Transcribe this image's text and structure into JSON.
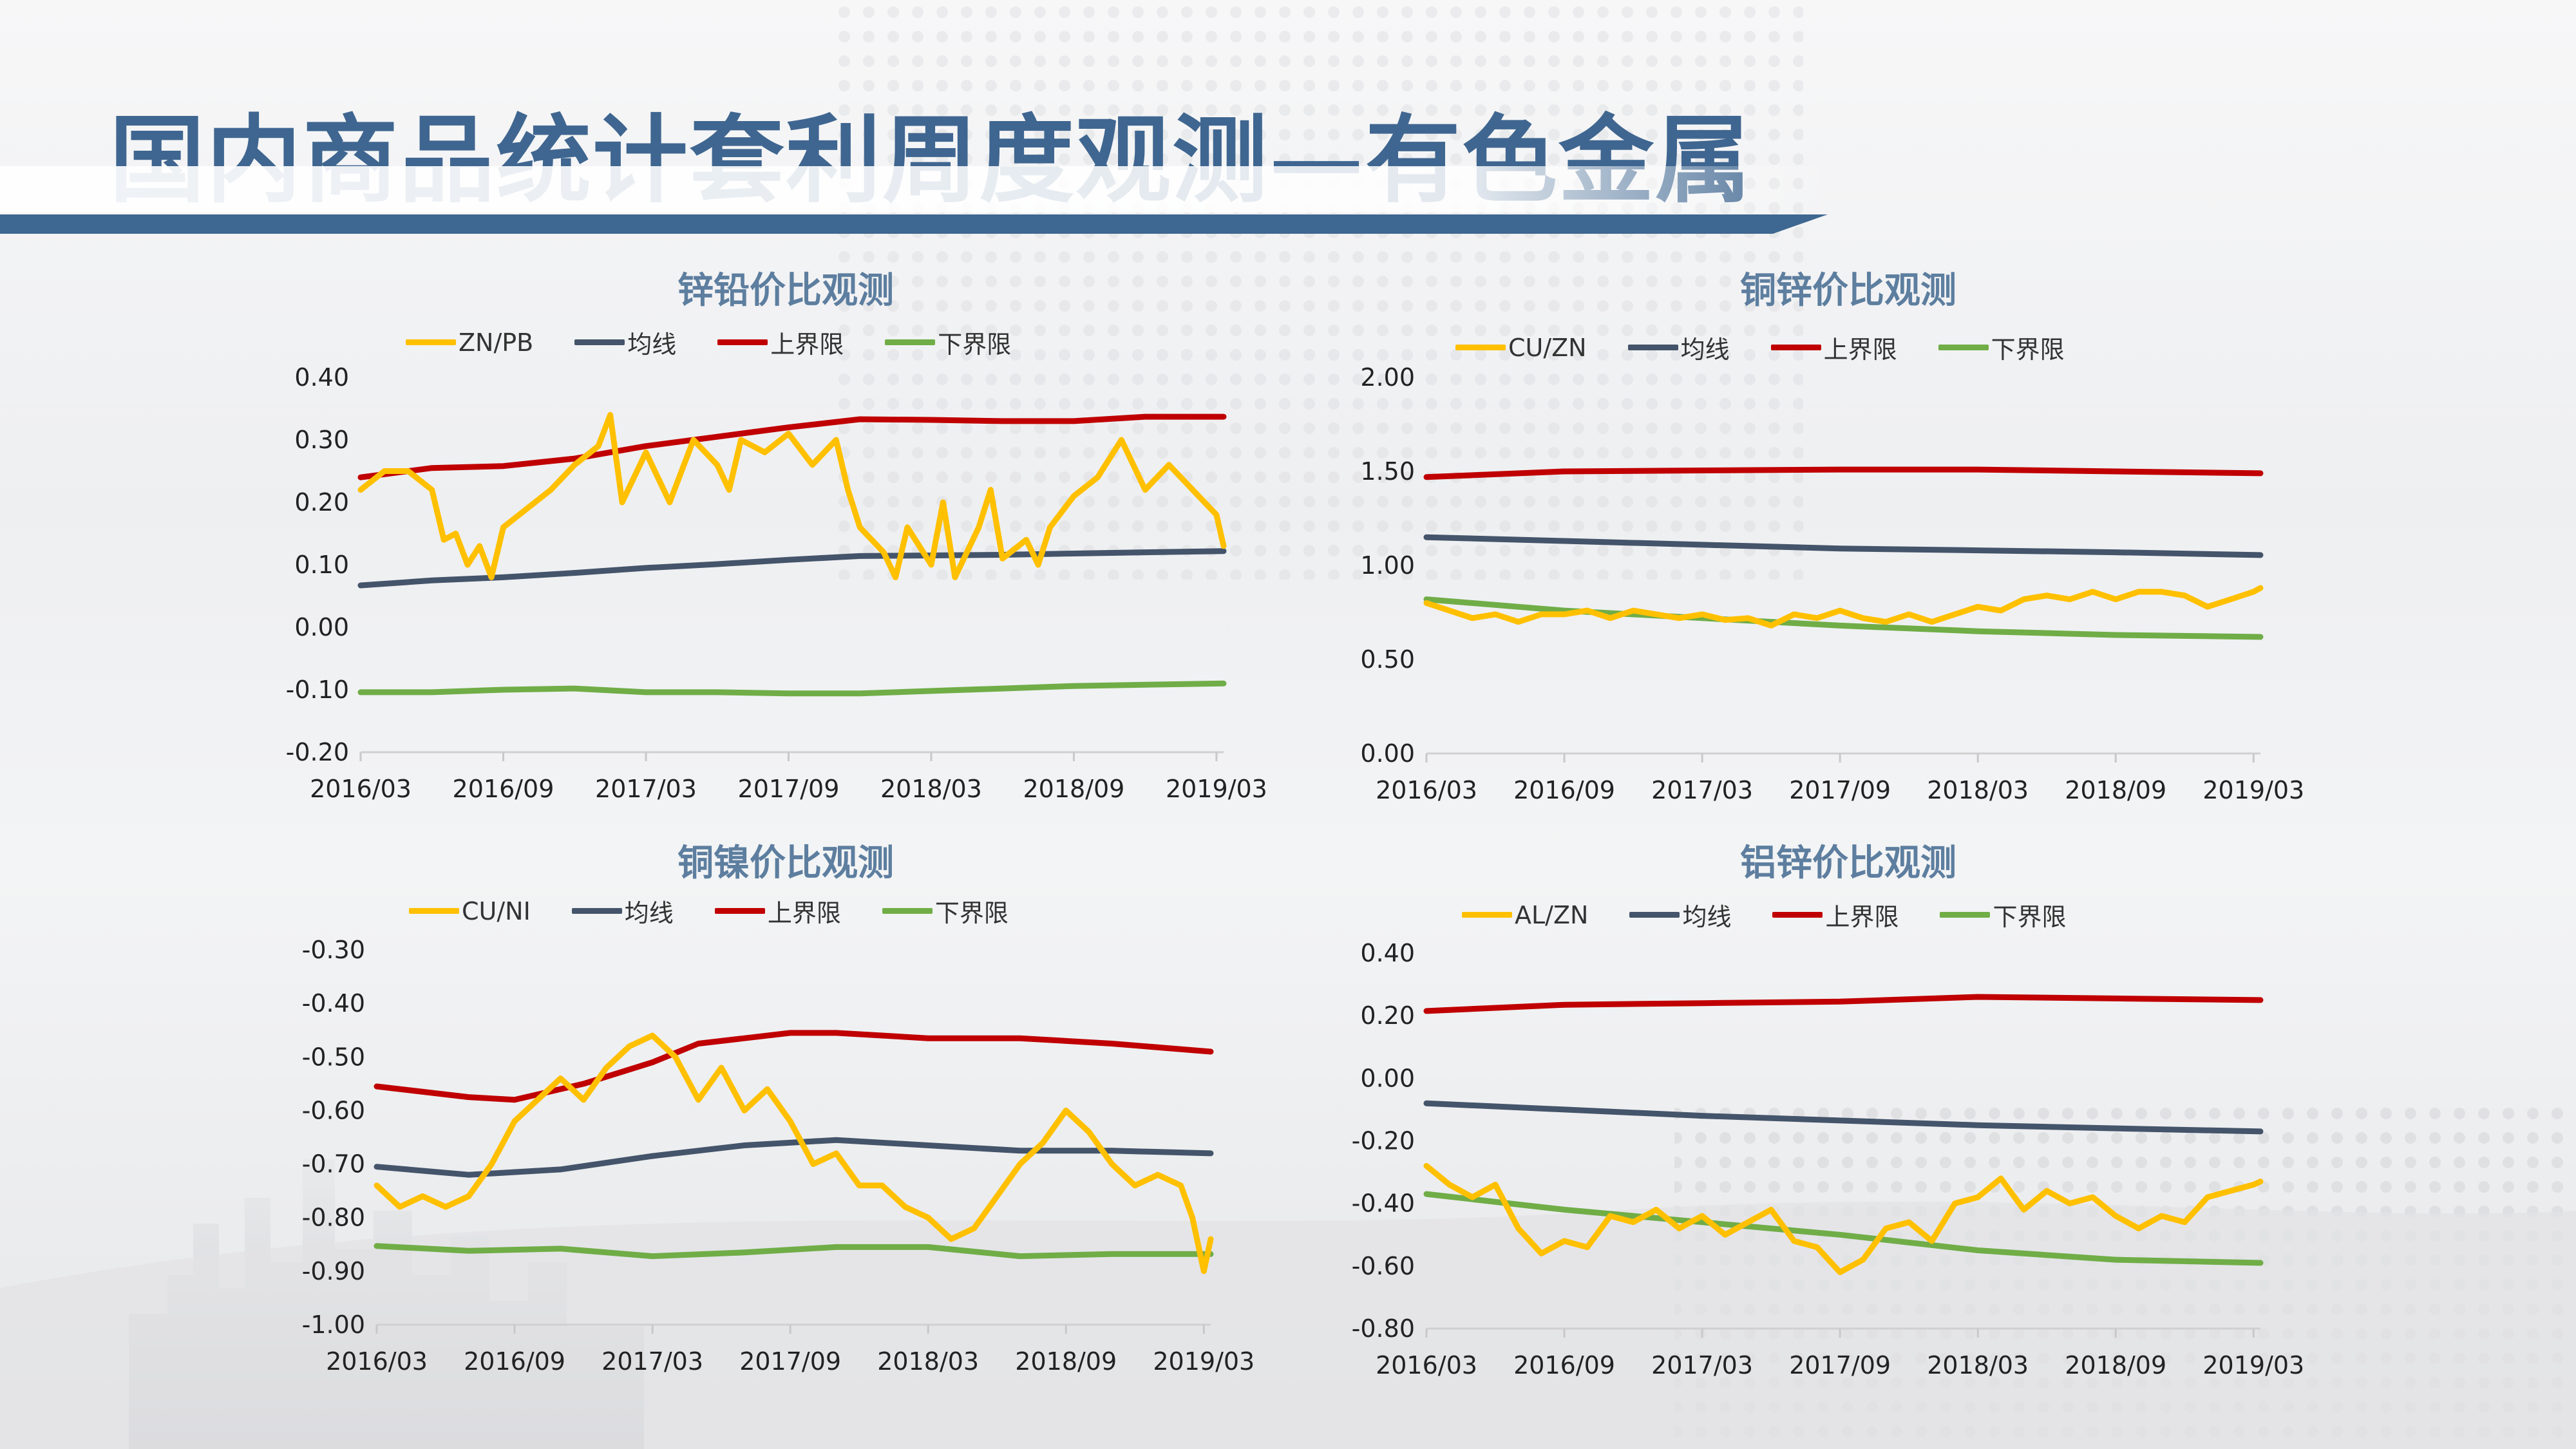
{
  "page_title": "国内商品统计套利周度观测—有色金属",
  "colors": {
    "title": "#3f6690",
    "chart_title": "#5d7e9f",
    "ratio": "#ffc000",
    "mean": "#44546a",
    "upper": "#c00000",
    "lower": "#70ad47",
    "accent_bar": "#3e6791"
  },
  "chart_data": [
    {
      "type": "line",
      "title": "锌铅价比观测",
      "x_ticks": [
        "2016/03",
        "2016/09",
        "2017/03",
        "2017/09",
        "2018/03",
        "2018/09",
        "2019/03"
      ],
      "y_ticks": [
        "0.40",
        "0.30",
        "0.20",
        "0.10",
        "0.00",
        "-0.10",
        "-0.20"
      ],
      "ylim": [
        -0.2,
        0.4
      ],
      "xlim": [
        0,
        36.3
      ],
      "grid": false,
      "legend_position": "top",
      "series": [
        {
          "name": "ZN/PB",
          "color": "#ffc000",
          "x": [
            0,
            1,
            2,
            3,
            3.5,
            4,
            4.5,
            5,
            5.5,
            6,
            7,
            8,
            9,
            10,
            10.5,
            11,
            12,
            12.5,
            13,
            14,
            15,
            15.5,
            16,
            17,
            18,
            19,
            20,
            20.5,
            21,
            22,
            22.5,
            23,
            24,
            24.5,
            25,
            26,
            26.5,
            27,
            28,
            28.5,
            29,
            30,
            31,
            32,
            33,
            34,
            35,
            36,
            36.3
          ],
          "y": [
            0.22,
            0.25,
            0.25,
            0.22,
            0.14,
            0.15,
            0.1,
            0.13,
            0.08,
            0.16,
            0.19,
            0.22,
            0.26,
            0.29,
            0.34,
            0.2,
            0.28,
            0.24,
            0.2,
            0.3,
            0.26,
            0.22,
            0.3,
            0.28,
            0.31,
            0.26,
            0.3,
            0.22,
            0.16,
            0.12,
            0.08,
            0.16,
            0.1,
            0.2,
            0.08,
            0.16,
            0.22,
            0.11,
            0.14,
            0.1,
            0.16,
            0.21,
            0.24,
            0.3,
            0.22,
            0.26,
            0.22,
            0.18,
            0.13
          ]
        },
        {
          "name": "均线",
          "color": "#44546a",
          "x": [
            0,
            3,
            6,
            9,
            12,
            15,
            18,
            21,
            24,
            27,
            30,
            33,
            36.3
          ],
          "y": [
            0.067,
            0.075,
            0.08,
            0.087,
            0.095,
            0.101,
            0.108,
            0.114,
            0.115,
            0.116,
            0.118,
            0.12,
            0.122
          ]
        },
        {
          "name": "上界限",
          "color": "#c00000",
          "x": [
            0,
            3,
            6,
            9,
            12,
            15,
            18,
            21,
            24,
            27,
            30,
            33,
            36.3
          ],
          "y": [
            0.24,
            0.255,
            0.258,
            0.27,
            0.29,
            0.305,
            0.32,
            0.333,
            0.332,
            0.33,
            0.33,
            0.337,
            0.337
          ]
        },
        {
          "name": "下界限",
          "color": "#70ad47",
          "x": [
            0,
            3,
            6,
            9,
            12,
            15,
            18,
            21,
            24,
            27,
            30,
            33,
            36.3
          ],
          "y": [
            -0.104,
            -0.104,
            -0.1,
            -0.098,
            -0.104,
            -0.104,
            -0.106,
            -0.106,
            -0.102,
            -0.098,
            -0.094,
            -0.092,
            -0.09
          ]
        }
      ]
    },
    {
      "type": "line",
      "title": "铜锌价比观测",
      "x_ticks": [
        "2016/03",
        "2016/09",
        "2017/03",
        "2017/09",
        "2018/03",
        "2018/09",
        "2019/03"
      ],
      "y_ticks": [
        "2.00",
        "1.50",
        "1.00",
        "0.50",
        "0.00"
      ],
      "ylim": [
        0,
        2.0
      ],
      "xlim": [
        0,
        36.3
      ],
      "grid": false,
      "legend_position": "top",
      "series": [
        {
          "name": "CU/ZN",
          "color": "#ffc000",
          "x": [
            0,
            1,
            2,
            3,
            4,
            5,
            6,
            7,
            8,
            9,
            10,
            11,
            12,
            13,
            14,
            15,
            16,
            17,
            18,
            19,
            20,
            21,
            22,
            23,
            24,
            25,
            26,
            27,
            28,
            29,
            30,
            31,
            32,
            33,
            34,
            35,
            36,
            36.3
          ],
          "y": [
            0.8,
            0.76,
            0.72,
            0.74,
            0.7,
            0.74,
            0.74,
            0.76,
            0.72,
            0.76,
            0.74,
            0.72,
            0.74,
            0.71,
            0.72,
            0.68,
            0.74,
            0.72,
            0.76,
            0.72,
            0.7,
            0.74,
            0.7,
            0.74,
            0.78,
            0.76,
            0.82,
            0.84,
            0.82,
            0.86,
            0.82,
            0.86,
            0.86,
            0.84,
            0.78,
            0.82,
            0.86,
            0.88
          ]
        },
        {
          "name": "均线",
          "color": "#44546a",
          "x": [
            0,
            6,
            12,
            18,
            24,
            30,
            36.3
          ],
          "y": [
            1.15,
            1.13,
            1.11,
            1.09,
            1.08,
            1.07,
            1.055
          ]
        },
        {
          "name": "上界限",
          "color": "#c00000",
          "x": [
            0,
            6,
            12,
            18,
            24,
            30,
            36.3
          ],
          "y": [
            1.47,
            1.5,
            1.505,
            1.51,
            1.51,
            1.5,
            1.49
          ]
        },
        {
          "name": "下界限",
          "color": "#70ad47",
          "x": [
            0,
            6,
            12,
            18,
            24,
            30,
            36.3
          ],
          "y": [
            0.82,
            0.76,
            0.72,
            0.68,
            0.65,
            0.63,
            0.62
          ]
        }
      ]
    },
    {
      "type": "line",
      "title": "铜镍价比观测",
      "x_ticks": [
        "2016/03",
        "2016/09",
        "2017/03",
        "2017/09",
        "2018/03",
        "2018/09",
        "2019/03"
      ],
      "y_ticks": [
        "-0.30",
        "-0.40",
        "-0.50",
        "-0.60",
        "-0.70",
        "-0.80",
        "-0.90",
        "-1.00"
      ],
      "ylim": [
        -1.0,
        -0.3
      ],
      "xlim": [
        0,
        36.3
      ],
      "grid": false,
      "legend_position": "top",
      "series": [
        {
          "name": "CU/NI",
          "color": "#ffc000",
          "x": [
            0,
            1,
            2,
            3,
            4,
            5,
            6,
            7,
            8,
            9,
            10,
            11,
            12,
            13,
            14,
            15,
            16,
            17,
            18,
            19,
            20,
            21,
            22,
            23,
            24,
            25,
            26,
            27,
            28,
            29,
            30,
            31,
            32,
            33,
            34,
            35,
            35.5,
            36,
            36.3
          ],
          "y": [
            -0.74,
            -0.78,
            -0.76,
            -0.78,
            -0.76,
            -0.7,
            -0.62,
            -0.58,
            -0.54,
            -0.58,
            -0.52,
            -0.48,
            -0.46,
            -0.5,
            -0.58,
            -0.52,
            -0.6,
            -0.56,
            -0.62,
            -0.7,
            -0.68,
            -0.74,
            -0.74,
            -0.78,
            -0.8,
            -0.84,
            -0.82,
            -0.76,
            -0.7,
            -0.66,
            -0.6,
            -0.64,
            -0.7,
            -0.74,
            -0.72,
            -0.74,
            -0.8,
            -0.9,
            -0.84
          ]
        },
        {
          "name": "均线",
          "color": "#44546a",
          "x": [
            0,
            4,
            8,
            12,
            16,
            20,
            24,
            28,
            32,
            36.3
          ],
          "y": [
            -0.705,
            -0.72,
            -0.71,
            -0.685,
            -0.665,
            -0.655,
            -0.665,
            -0.675,
            -0.675,
            -0.68
          ]
        },
        {
          "name": "上界限",
          "color": "#c00000",
          "x": [
            0,
            4,
            6,
            9,
            12,
            14,
            16,
            18,
            20,
            22,
            24,
            28,
            32,
            36.3
          ],
          "y": [
            -0.555,
            -0.575,
            -0.58,
            -0.55,
            -0.51,
            -0.475,
            -0.465,
            -0.455,
            -0.455,
            -0.46,
            -0.465,
            -0.465,
            -0.475,
            -0.49
          ]
        },
        {
          "name": "下界限",
          "color": "#70ad47",
          "x": [
            0,
            4,
            8,
            12,
            16,
            20,
            24,
            28,
            32,
            36.3
          ],
          "y": [
            -0.853,
            -0.862,
            -0.858,
            -0.872,
            -0.865,
            -0.855,
            -0.855,
            -0.872,
            -0.868,
            -0.868
          ]
        }
      ]
    },
    {
      "type": "line",
      "title": "铝锌价比观测",
      "x_ticks": [
        "2016/03",
        "2016/09",
        "2017/03",
        "2017/09",
        "2018/03",
        "2018/09",
        "2019/03"
      ],
      "y_ticks": [
        "0.40",
        "0.20",
        "0.00",
        "-0.20",
        "-0.40",
        "-0.60",
        "-0.80"
      ],
      "ylim": [
        -0.8,
        0.4
      ],
      "xlim": [
        0,
        36.3
      ],
      "grid": false,
      "legend_position": "top",
      "series": [
        {
          "name": "AL/ZN",
          "color": "#ffc000",
          "x": [
            0,
            1,
            2,
            3,
            4,
            5,
            6,
            7,
            8,
            9,
            10,
            11,
            12,
            13,
            14,
            15,
            16,
            17,
            18,
            19,
            20,
            21,
            22,
            23,
            24,
            25,
            26,
            27,
            28,
            29,
            30,
            31,
            32,
            33,
            34,
            35,
            36,
            36.3
          ],
          "y": [
            -0.28,
            -0.34,
            -0.38,
            -0.34,
            -0.48,
            -0.56,
            -0.52,
            -0.54,
            -0.44,
            -0.46,
            -0.42,
            -0.48,
            -0.44,
            -0.5,
            -0.46,
            -0.42,
            -0.52,
            -0.54,
            -0.62,
            -0.58,
            -0.48,
            -0.46,
            -0.52,
            -0.4,
            -0.38,
            -0.32,
            -0.42,
            -0.36,
            -0.4,
            -0.38,
            -0.44,
            -0.48,
            -0.44,
            -0.46,
            -0.38,
            -0.36,
            -0.34,
            -0.33
          ]
        },
        {
          "name": "均线",
          "color": "#44546a",
          "x": [
            0,
            6,
            12,
            18,
            24,
            30,
            36.3
          ],
          "y": [
            -0.08,
            -0.1,
            -0.12,
            -0.135,
            -0.15,
            -0.16,
            -0.17
          ]
        },
        {
          "name": "上界限",
          "color": "#c00000",
          "x": [
            0,
            6,
            12,
            18,
            24,
            30,
            36.3
          ],
          "y": [
            0.215,
            0.235,
            0.24,
            0.245,
            0.26,
            0.255,
            0.25
          ]
        },
        {
          "name": "下界限",
          "color": "#70ad47",
          "x": [
            0,
            6,
            12,
            18,
            24,
            30,
            36.3
          ],
          "y": [
            -0.37,
            -0.42,
            -0.46,
            -0.5,
            -0.55,
            -0.58,
            -0.59
          ]
        }
      ]
    }
  ]
}
